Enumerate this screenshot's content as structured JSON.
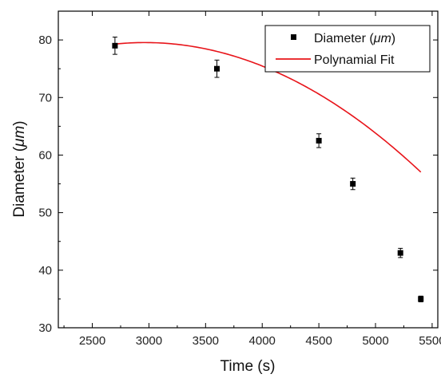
{
  "chart_data": {
    "type": "scatter",
    "xlabel": "Time (s)",
    "ylabel_main": "Diameter (",
    "ylabel_unit": "μm",
    "ylabel_close": ")",
    "xlim": [
      2200,
      5550
    ],
    "ylim": [
      30,
      85
    ],
    "xticks": [
      2500,
      3000,
      3500,
      4000,
      4500,
      5000,
      5500
    ],
    "yticks": [
      30,
      40,
      50,
      60,
      70,
      80
    ],
    "x_tick_labels": [
      "2500",
      "3000",
      "3500",
      "4000",
      "4500",
      "5000",
      "5500"
    ],
    "y_tick_labels": [
      "30",
      "40",
      "50",
      "60",
      "70",
      "80"
    ],
    "grid": false,
    "legend_position": "top-right",
    "series": [
      {
        "name": "Diameter (μm)",
        "legend_main": "Diameter (",
        "legend_unit": "μm",
        "legend_close": ")",
        "kind": "scatter",
        "marker": "square",
        "color": "#000000",
        "x": [
          2700,
          3600,
          4500,
          4800,
          5220,
          5400
        ],
        "y": [
          79,
          75,
          62.5,
          55,
          43,
          35
        ],
        "error": [
          1.5,
          1.5,
          1.2,
          1.0,
          0.8,
          0.5
        ]
      },
      {
        "name": "Polynamial Fit",
        "kind": "line",
        "color": "#e8141a",
        "x_range": [
          2700,
          5400
        ],
        "coefficients": [
          46.27,
          0.02246,
          -3.79e-06
        ]
      }
    ]
  }
}
